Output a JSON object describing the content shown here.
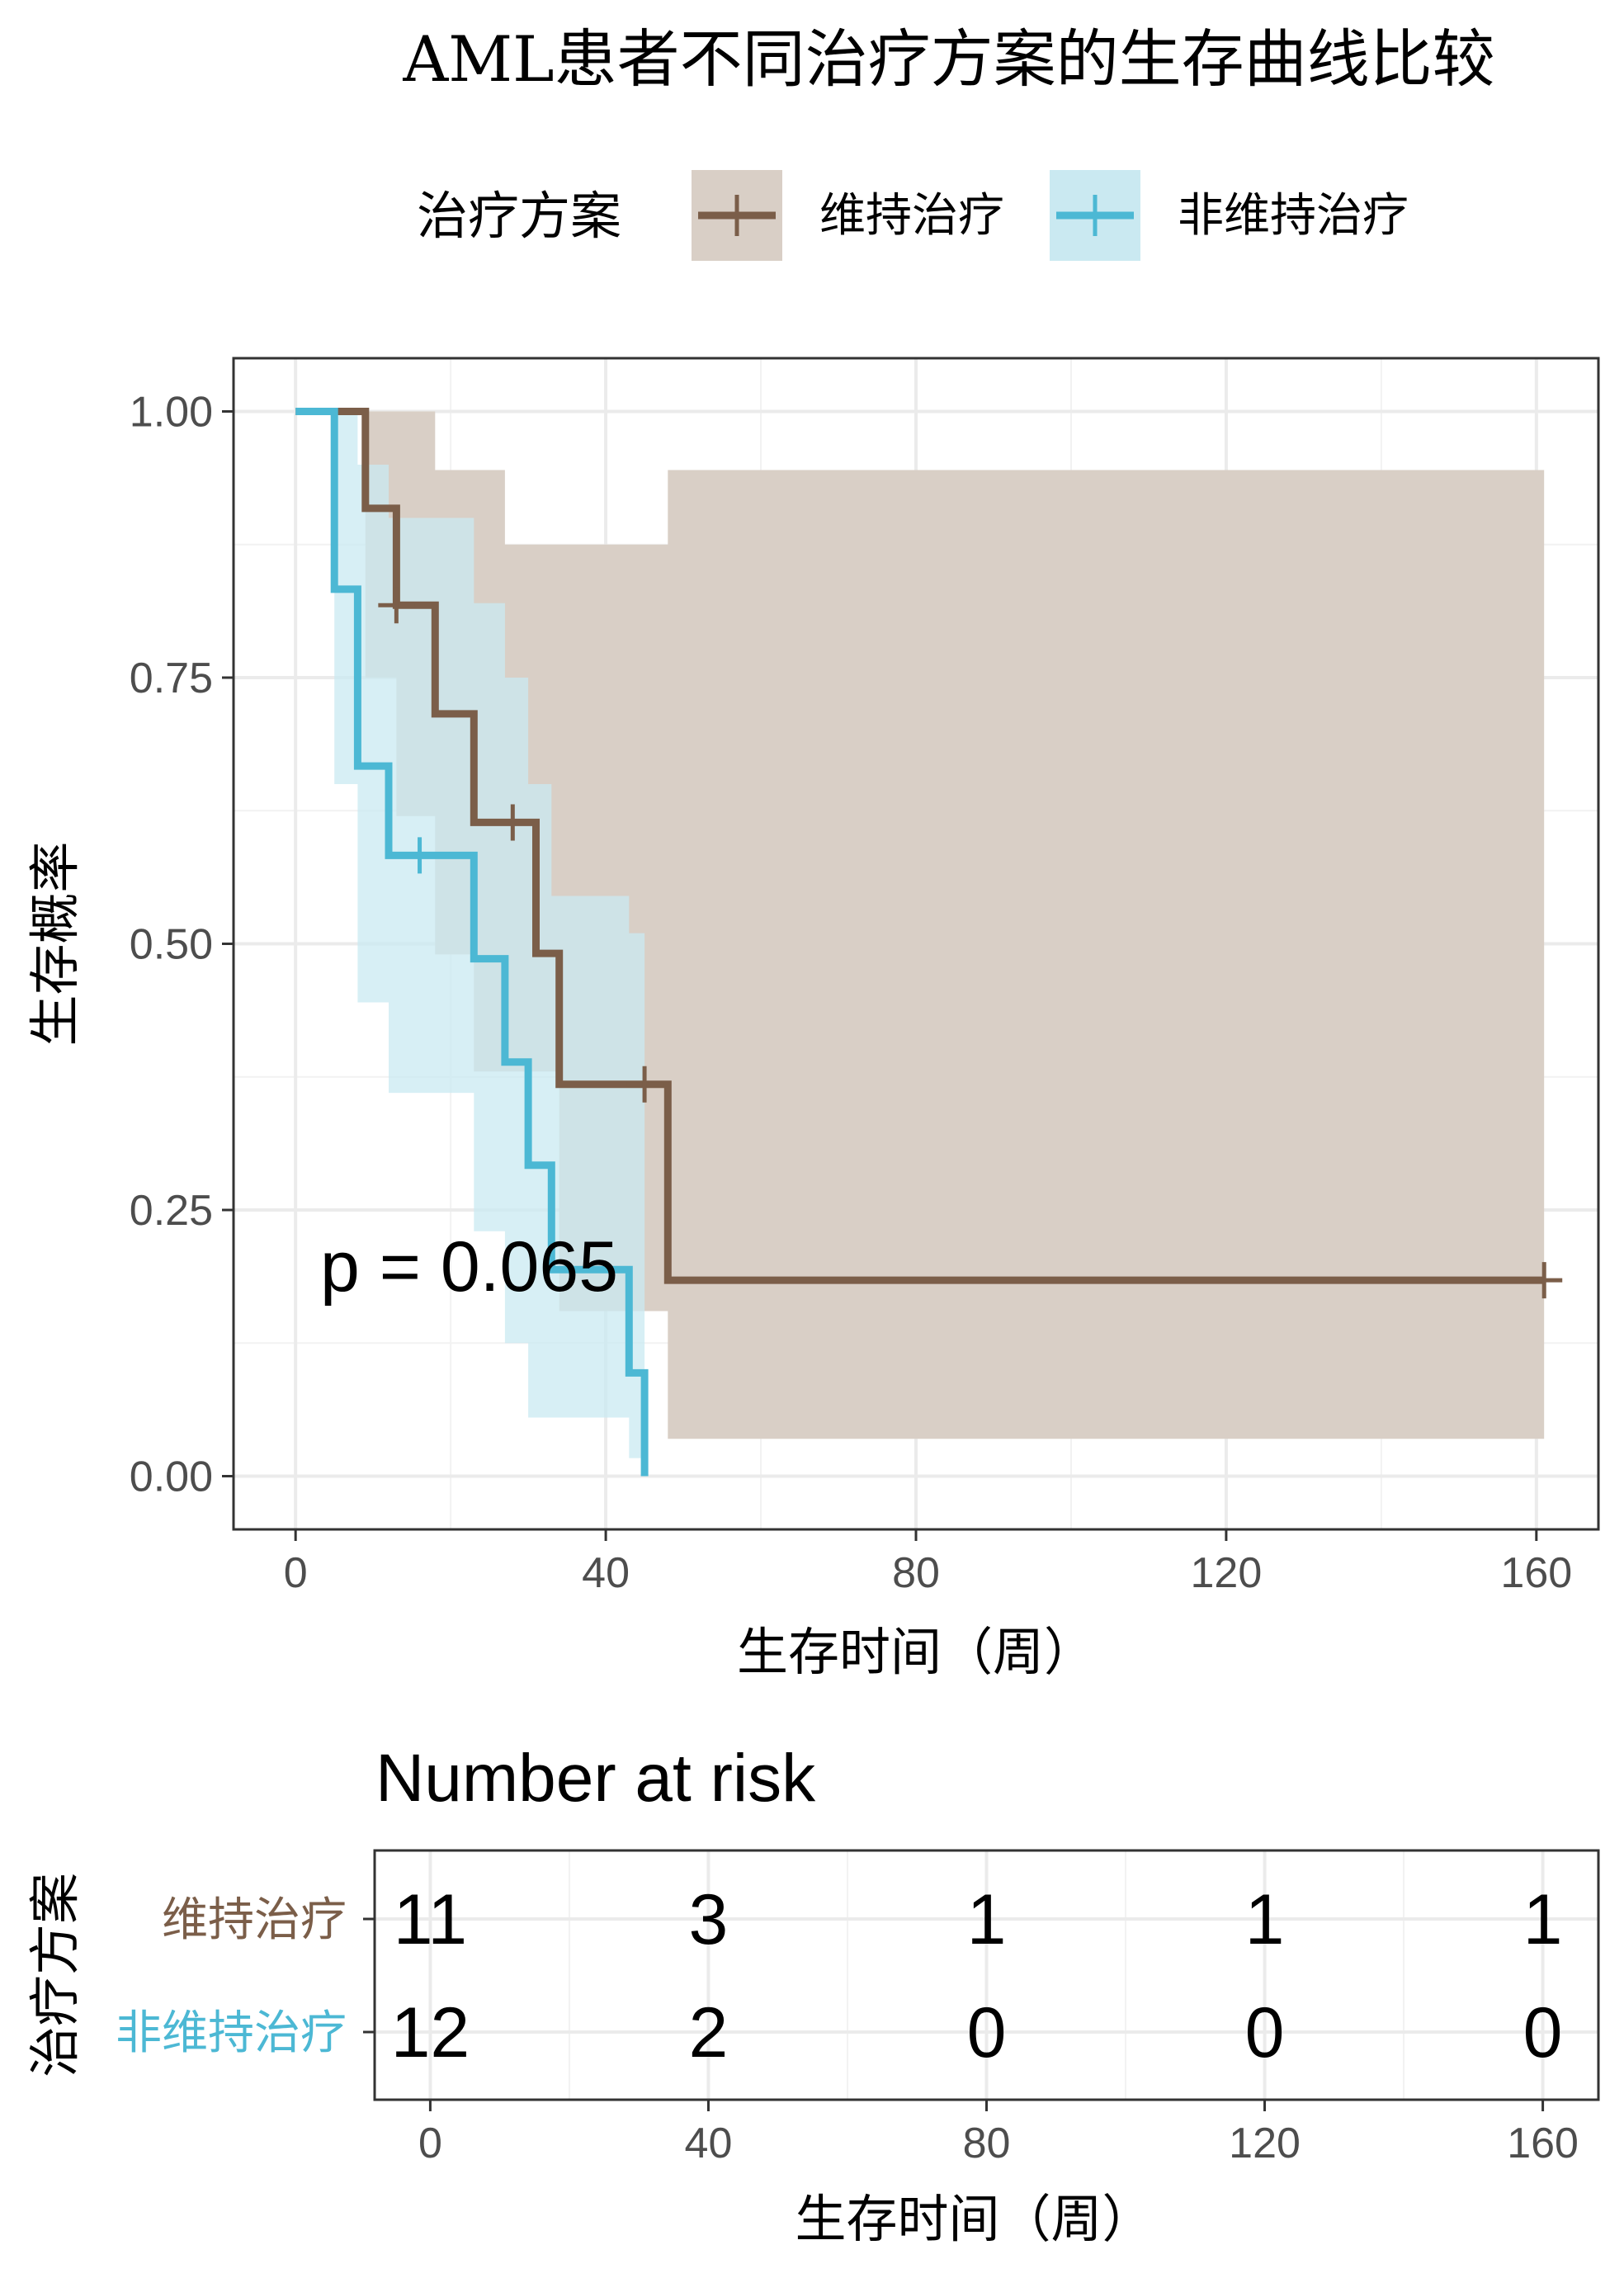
{
  "title": "AML患者不同治疗方案的生存曲线比较",
  "legend": {
    "title": "治疗方案",
    "placement": "top"
  },
  "pvalue_label": "p = 0.065",
  "risk_table": {
    "title": "Number at risk",
    "ylabel": "治疗方案",
    "xlabel": "生存时间（周）",
    "times": [
      0,
      40,
      80,
      120,
      160
    ],
    "rows": [
      {
        "group": "维持治疗",
        "counts": [
          "11",
          "3",
          "1",
          "1",
          "1"
        ]
      },
      {
        "group": "非维持治疗",
        "counts": [
          "12",
          "2",
          "0",
          "0",
          "0"
        ]
      }
    ]
  },
  "chart_data": {
    "type": "line",
    "subtype": "kaplan-meier step curve with 95% confidence bands",
    "xlabel": "生存时间（周）",
    "ylabel": "生存概率",
    "xlim": [
      -8,
      168
    ],
    "ylim": [
      -0.05,
      1.05
    ],
    "xticks": [
      0,
      40,
      80,
      120,
      160
    ],
    "xtick_labels": [
      "0",
      "40",
      "80",
      "120",
      "160"
    ],
    "yticks": [
      0,
      0.25,
      0.5,
      0.75,
      1.0
    ],
    "ytick_labels": [
      "0.00",
      "0.25",
      "0.50",
      "0.75",
      "1.00"
    ],
    "grid": true,
    "series": [
      {
        "name": "维持治疗",
        "color": "#7b5e49",
        "band_color": "#d9cfc6",
        "steps": [
          [
            0,
            1.0
          ],
          [
            9,
            0.909
          ],
          [
            13,
            0.818
          ],
          [
            18,
            0.716
          ],
          [
            23,
            0.614
          ],
          [
            31,
            0.491
          ],
          [
            34,
            0.368
          ],
          [
            48,
            0.184
          ],
          [
            161,
            0.184
          ]
        ],
        "censored": [
          [
            13,
            0.818
          ],
          [
            28,
            0.614
          ],
          [
            45,
            0.368
          ],
          [
            161,
            0.184
          ]
        ],
        "band": [
          [
            0,
            1.0,
            1.0
          ],
          [
            9,
            1.0,
            0.75
          ],
          [
            13,
            1.0,
            0.62
          ],
          [
            18,
            0.945,
            0.49
          ],
          [
            23,
            0.945,
            0.38
          ],
          [
            27,
            0.875,
            0.38
          ],
          [
            34,
            0.875,
            0.155
          ],
          [
            48,
            0.945,
            0.035
          ],
          [
            161,
            0.945,
            0.035
          ]
        ]
      },
      {
        "name": "非维持治疗",
        "color": "#4cb8d4",
        "band_color": "#cae9f1",
        "steps": [
          [
            0,
            1.0
          ],
          [
            5,
            0.833
          ],
          [
            8,
            0.667
          ],
          [
            12,
            0.583
          ],
          [
            23,
            0.486
          ],
          [
            27,
            0.389
          ],
          [
            30,
            0.292
          ],
          [
            33,
            0.194
          ],
          [
            43,
            0.097
          ],
          [
            45,
            0.0
          ]
        ],
        "censored": [
          [
            16,
            0.583
          ]
        ],
        "band": [
          [
            0,
            1.0,
            1.0
          ],
          [
            5,
            1.0,
            0.65
          ],
          [
            8,
            0.95,
            0.445
          ],
          [
            12,
            0.9,
            0.36
          ],
          [
            23,
            0.82,
            0.23
          ],
          [
            27,
            0.75,
            0.125
          ],
          [
            30,
            0.65,
            0.055
          ],
          [
            33,
            0.545,
            0.055
          ],
          [
            43,
            0.51,
            0.017
          ],
          [
            45,
            0.51,
            0.0
          ]
        ]
      }
    ]
  }
}
